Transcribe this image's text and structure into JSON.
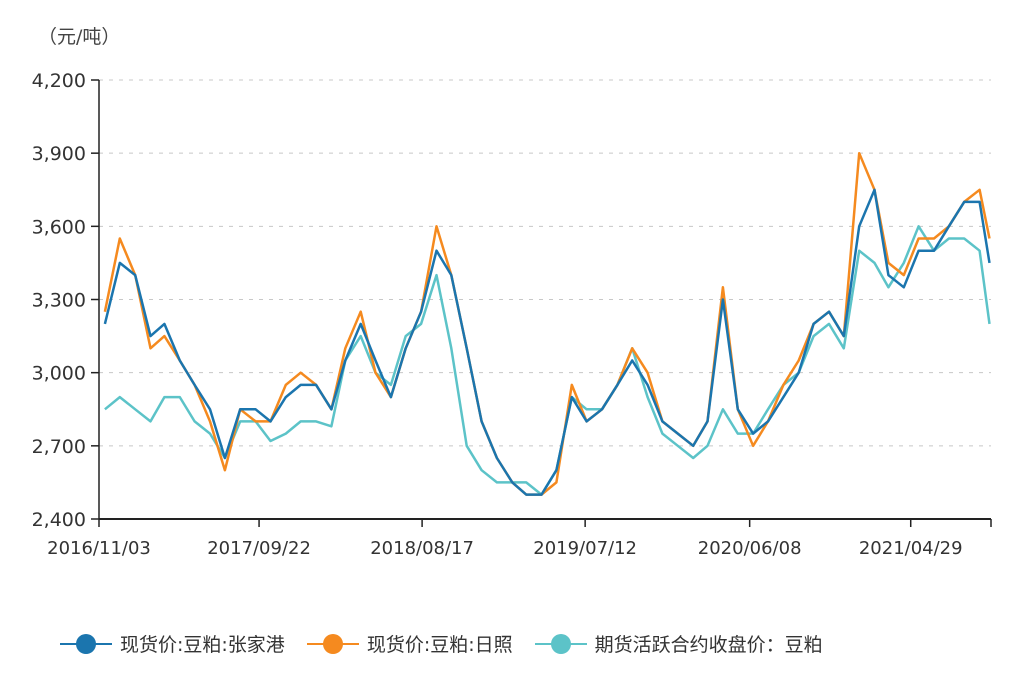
{
  "chart_data": {
    "type": "line",
    "ylabel": "（元/吨）",
    "ylim": [
      2400,
      4200
    ],
    "yticks": [
      2400,
      2700,
      3000,
      3300,
      3600,
      3900,
      4200
    ],
    "ytick_labels": [
      "2,400",
      "2,700",
      "3,000",
      "3,300",
      "3,600",
      "3,900",
      "4,200"
    ],
    "xlim": [
      "2016-11-03",
      "2021-10-08"
    ],
    "xticks": [
      "2016-11-03",
      "2017-09-22",
      "2018-08-17",
      "2019-07-12",
      "2020-06-08",
      "2021-04-29"
    ],
    "xtick_labels": [
      "2016/11/03",
      "2017/09/22",
      "2018/08/17",
      "2019/07/12",
      "2020/06/08",
      "2021/04/29"
    ],
    "grid": "horizontal dashed",
    "legend_position": "bottom",
    "x": [
      "2016-11-15",
      "2016-12-15",
      "2017-01-15",
      "2017-02-15",
      "2017-03-15",
      "2017-04-15",
      "2017-05-15",
      "2017-06-15",
      "2017-07-15",
      "2017-08-15",
      "2017-09-15",
      "2017-10-15",
      "2017-11-15",
      "2017-12-15",
      "2018-01-15",
      "2018-02-15",
      "2018-03-15",
      "2018-04-15",
      "2018-05-15",
      "2018-06-15",
      "2018-07-15",
      "2018-08-15",
      "2018-09-15",
      "2018-10-15",
      "2018-11-15",
      "2018-12-15",
      "2019-01-15",
      "2019-02-15",
      "2019-03-15",
      "2019-04-15",
      "2019-05-15",
      "2019-06-15",
      "2019-07-15",
      "2019-08-15",
      "2019-09-15",
      "2019-10-15",
      "2019-11-15",
      "2019-12-15",
      "2020-01-15",
      "2020-02-15",
      "2020-03-15",
      "2020-04-15",
      "2020-05-15",
      "2020-06-15",
      "2020-07-15",
      "2020-08-15",
      "2020-09-15",
      "2020-10-15",
      "2020-11-15",
      "2020-12-15",
      "2021-01-15",
      "2021-02-15",
      "2021-03-15",
      "2021-04-15",
      "2021-05-15",
      "2021-06-15",
      "2021-07-15",
      "2021-08-15",
      "2021-09-15",
      "2021-10-05"
    ],
    "series": [
      {
        "name": "现货价:豆粕:张家港",
        "color": "#1b75ae",
        "values": [
          3200,
          3450,
          3400,
          3150,
          3200,
          3050,
          2950,
          2850,
          2650,
          2850,
          2850,
          2800,
          2900,
          2950,
          2950,
          2850,
          3050,
          3200,
          3050,
          2900,
          3100,
          3250,
          3500,
          3400,
          3100,
          2800,
          2650,
          2550,
          2500,
          2500,
          2600,
          2900,
          2800,
          2850,
          2950,
          3050,
          2950,
          2800,
          2750,
          2700,
          2800,
          3300,
          2850,
          2750,
          2800,
          2900,
          3000,
          3200,
          3250,
          3150,
          3600,
          3750,
          3400,
          3350,
          3500,
          3500,
          3600,
          3700,
          3700,
          3450
        ]
      },
      {
        "name": "现货价:豆粕:日照",
        "color": "#f58a1f",
        "values": [
          3250,
          3550,
          3400,
          3100,
          3150,
          3050,
          2950,
          2800,
          2600,
          2850,
          2800,
          2800,
          2950,
          3000,
          2950,
          2850,
          3100,
          3250,
          3000,
          2900,
          3100,
          3250,
          3600,
          3400,
          3100,
          2800,
          2650,
          2550,
          2500,
          2500,
          2550,
          2950,
          2800,
          2850,
          2950,
          3100,
          3000,
          2800,
          2750,
          2700,
          2800,
          3350,
          2850,
          2700,
          2800,
          2950,
          3050,
          3200,
          3250,
          3150,
          3900,
          3750,
          3450,
          3400,
          3550,
          3550,
          3600,
          3700,
          3750,
          3550
        ]
      },
      {
        "name": "期货活跃合约收盘价：豆粕",
        "color": "#5cc3c8",
        "values": [
          2850,
          2900,
          2850,
          2800,
          2900,
          2900,
          2800,
          2750,
          2650,
          2800,
          2800,
          2720,
          2750,
          2800,
          2800,
          2780,
          3050,
          3150,
          3000,
          2950,
          3150,
          3200,
          3400,
          3100,
          2700,
          2600,
          2550,
          2550,
          2550,
          2500,
          2600,
          2900,
          2850,
          2850,
          2950,
          3100,
          2900,
          2750,
          2700,
          2650,
          2700,
          2850,
          2750,
          2750,
          2850,
          2950,
          3000,
          3150,
          3200,
          3100,
          3500,
          3450,
          3350,
          3450,
          3600,
          3500,
          3550,
          3550,
          3500,
          3200
        ]
      }
    ]
  }
}
